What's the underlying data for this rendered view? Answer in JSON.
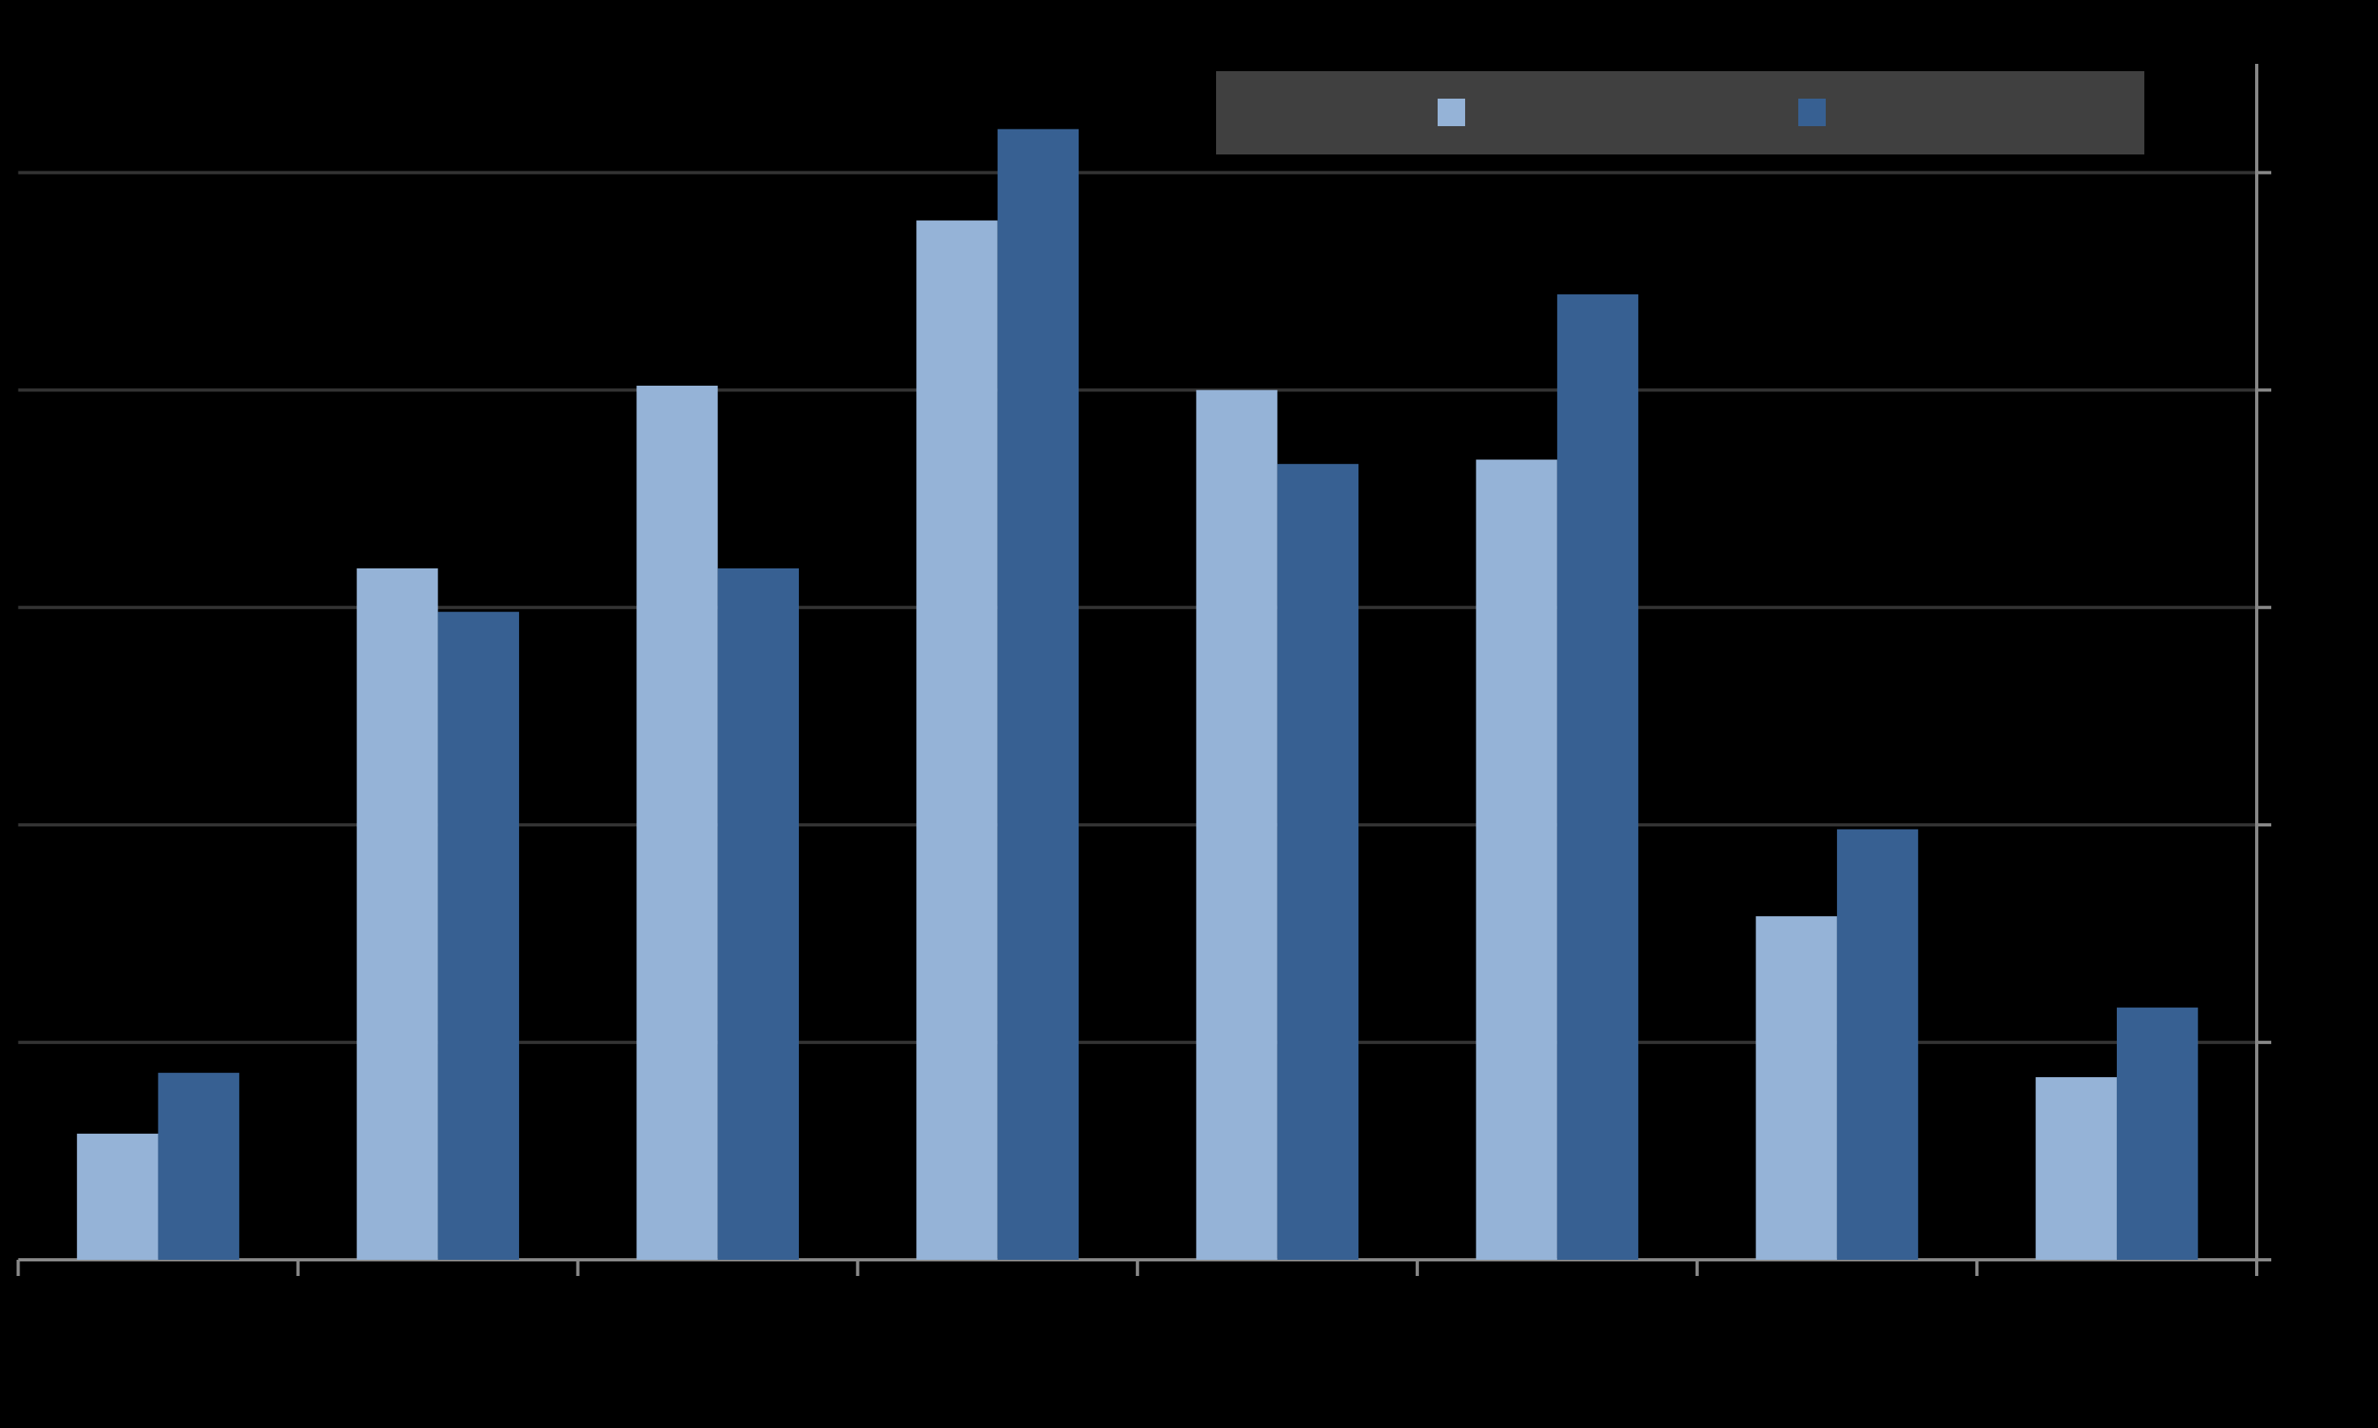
{
  "chart_data": {
    "type": "bar",
    "categories": [
      null,
      null,
      null,
      null,
      null,
      null,
      null,
      null
    ],
    "series": [
      {
        "color": "#95b3d7",
        "values": [
          0.58,
          3.18,
          4.02,
          4.78,
          4.0,
          3.68,
          1.58,
          0.84
        ]
      },
      {
        "color": "#376092",
        "values": [
          0.86,
          2.98,
          3.18,
          5.2,
          3.66,
          4.44,
          1.98,
          1.16
        ]
      }
    ],
    "ylim": [
      0,
      5.5
    ],
    "yticks": [
      0,
      1,
      2,
      3,
      4,
      5
    ],
    "grid": true,
    "legend": "top"
  }
}
